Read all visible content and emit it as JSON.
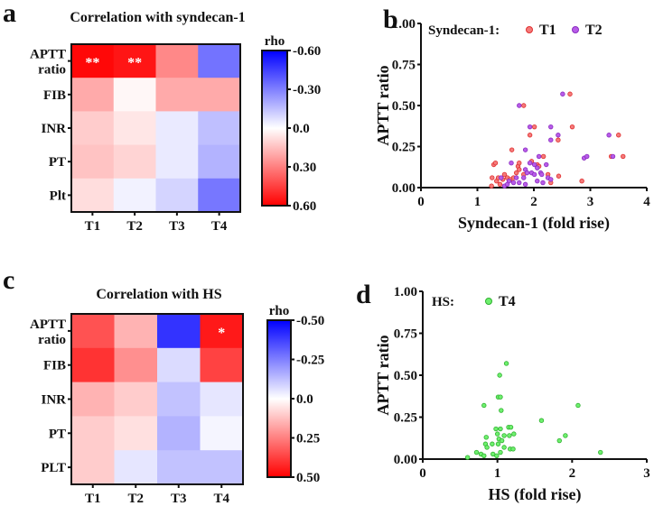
{
  "panels": {
    "a": "a",
    "b": "b",
    "c": "c",
    "d": "d"
  },
  "chart_data": [
    {
      "type": "heatmap",
      "panel": "a",
      "title": "Correlation with syndecan-1",
      "rows": [
        "APTT ratio",
        "FIB",
        "INR",
        "PT",
        "Plt"
      ],
      "columns": [
        "T1",
        "T2",
        "T3",
        "T4"
      ],
      "values": [
        [
          0.58,
          0.55,
          0.28,
          -0.33
        ],
        [
          0.2,
          0.02,
          0.2,
          0.2
        ],
        [
          0.12,
          0.06,
          -0.05,
          -0.15
        ],
        [
          0.14,
          0.1,
          -0.05,
          -0.18
        ],
        [
          0.08,
          -0.03,
          -0.1,
          -0.32
        ]
      ],
      "annotations": [
        [
          "**",
          "**",
          "",
          ""
        ],
        [
          "",
          "",
          "",
          ""
        ],
        [
          "",
          "",
          "",
          ""
        ],
        [
          "",
          "",
          "",
          ""
        ],
        [
          "",
          "",
          "",
          ""
        ]
      ],
      "colorbar": {
        "label": "rho",
        "ticks": [
          "-0.60",
          "-0.30",
          "0.0",
          "0.30",
          "0.60"
        ],
        "range": [
          -0.6,
          0.6
        ],
        "negative_color": "#0000ff",
        "positive_color": "#ff0000"
      }
    },
    {
      "type": "scatter",
      "panel": "b",
      "xlabel": "Syndecan-1 (fold rise)",
      "ylabel": "APTT ratio",
      "xlim": [
        0,
        4
      ],
      "ylim": [
        0,
        1
      ],
      "xticks": [
        "0",
        "1",
        "2",
        "3",
        "4"
      ],
      "yticks": [
        "0.00",
        "0.25",
        "0.50",
        "0.75",
        "1.00"
      ],
      "legend_title": "Syndecan-1:",
      "series": [
        {
          "name": "T1",
          "fill": "#f47a7a",
          "stroke": "#e03030",
          "points": [
            [
              1.26,
              0.06
            ],
            [
              1.25,
              0.01
            ],
            [
              1.34,
              0.04
            ],
            [
              1.37,
              0.06
            ],
            [
              1.45,
              0.05
            ],
            [
              1.4,
              0.02
            ],
            [
              1.48,
              0.08
            ],
            [
              1.53,
              0.06
            ],
            [
              1.58,
              0.05
            ],
            [
              1.64,
              0.06
            ],
            [
              1.29,
              0.14
            ],
            [
              1.32,
              0.15
            ],
            [
              1.61,
              0.23
            ],
            [
              1.69,
              0.09
            ],
            [
              1.72,
              0.13
            ],
            [
              1.74,
              0.15
            ],
            [
              1.82,
              0.5
            ],
            [
              1.93,
              0.32
            ],
            [
              2.01,
              0.37
            ],
            [
              1.74,
              0.11
            ],
            [
              1.82,
              0.08
            ],
            [
              1.96,
              0.16
            ],
            [
              2.06,
              0.14
            ],
            [
              2.09,
              0.13
            ],
            [
              2.17,
              0.19
            ],
            [
              2.25,
              0.08
            ],
            [
              2.3,
              0.03
            ],
            [
              2.44,
              0.07
            ],
            [
              2.43,
              0.29
            ],
            [
              2.64,
              0.57
            ],
            [
              2.68,
              0.37
            ],
            [
              2.85,
              0.04
            ],
            [
              3.5,
              0.32
            ],
            [
              3.37,
              0.19
            ],
            [
              3.58,
              0.19
            ]
          ]
        },
        {
          "name": "T2",
          "fill": "#b85ce8",
          "stroke": "#8a2cc0",
          "points": [
            [
              1.74,
              0.5
            ],
            [
              2.51,
              0.57
            ],
            [
              1.93,
              0.37
            ],
            [
              2.3,
              0.37
            ],
            [
              2.43,
              0.32
            ],
            [
              2.3,
              0.29
            ],
            [
              1.85,
              0.23
            ],
            [
              3.33,
              0.32
            ],
            [
              2.89,
              0.18
            ],
            [
              2.94,
              0.19
            ],
            [
              3.4,
              0.19
            ],
            [
              1.6,
              0.15
            ],
            [
              2.09,
              0.19
            ],
            [
              2.22,
              0.14
            ],
            [
              1.85,
              0.11
            ],
            [
              1.93,
              0.15
            ],
            [
              2.01,
              0.14
            ],
            [
              1.88,
              0.09
            ],
            [
              1.96,
              0.09
            ],
            [
              2.01,
              0.08
            ],
            [
              2.06,
              0.12
            ],
            [
              2.12,
              0.09
            ],
            [
              2.14,
              0.08
            ],
            [
              2.25,
              0.06
            ],
            [
              2.3,
              0.05
            ],
            [
              2.06,
              0.04
            ],
            [
              2.16,
              0.03
            ],
            [
              1.69,
              0.06
            ],
            [
              1.82,
              0.06
            ],
            [
              1.74,
              0.03
            ],
            [
              1.85,
              0.02
            ],
            [
              1.64,
              0.03
            ],
            [
              1.56,
              0.04
            ],
            [
              1.42,
              0.06
            ],
            [
              1.48,
              0.01
            ],
            [
              1.53,
              0.02
            ]
          ]
        }
      ]
    },
    {
      "type": "heatmap",
      "panel": "c",
      "title": "Correlation with HS",
      "rows": [
        "APTT ratio",
        "FIB",
        "INR",
        "PT",
        "PLT"
      ],
      "columns": [
        "T1",
        "T2",
        "T3",
        "T4"
      ],
      "values": [
        [
          0.34,
          0.15,
          -0.4,
          0.45
        ],
        [
          0.4,
          0.22,
          -0.07,
          0.37
        ],
        [
          0.15,
          0.1,
          -0.12,
          -0.05
        ],
        [
          0.1,
          0.06,
          -0.15,
          -0.02
        ],
        [
          0.1,
          -0.05,
          -0.12,
          -0.12
        ]
      ],
      "annotations": [
        [
          "",
          "",
          "",
          "*"
        ],
        [
          "",
          "",
          "",
          ""
        ],
        [
          "",
          "",
          "",
          ""
        ],
        [
          "",
          "",
          "",
          ""
        ],
        [
          "",
          "",
          "",
          ""
        ]
      ],
      "colorbar": {
        "label": "rho",
        "ticks": [
          "-0.50",
          "-0.25",
          "0.0",
          "0.25",
          "0.50"
        ],
        "range": [
          -0.5,
          0.5
        ],
        "negative_color": "#0000ff",
        "positive_color": "#ff0000"
      }
    },
    {
      "type": "scatter",
      "panel": "d",
      "xlabel": "HS (fold rise)",
      "ylabel": "APTT ratio",
      "xlim": [
        0,
        3
      ],
      "ylim": [
        0,
        1
      ],
      "xticks": [
        "0",
        "1",
        "2",
        "3"
      ],
      "yticks": [
        "0.00",
        "0.25",
        "0.50",
        "0.75",
        "1.00"
      ],
      "legend_title": "HS:",
      "series": [
        {
          "name": "T4",
          "fill": "#6ef06e",
          "stroke": "#30b030",
          "points": [
            [
              0.6,
              0.01
            ],
            [
              0.72,
              0.04
            ],
            [
              0.78,
              0.03
            ],
            [
              0.82,
              0.02
            ],
            [
              0.84,
              0.09
            ],
            [
              0.85,
              0.13
            ],
            [
              0.86,
              0.07
            ],
            [
              0.82,
              0.32
            ],
            [
              0.93,
              0.09
            ],
            [
              0.94,
              0.03
            ],
            [
              0.99,
              0.02
            ],
            [
              0.98,
              0.18
            ],
            [
              1.0,
              0.15
            ],
            [
              1.01,
              0.09
            ],
            [
              1.02,
              0.12
            ],
            [
              1.04,
              0.18
            ],
            [
              1.03,
              0.5
            ],
            [
              1.01,
              0.37
            ],
            [
              1.04,
              0.37
            ],
            [
              1.05,
              0.29
            ],
            [
              1.04,
              0.04
            ],
            [
              1.06,
              0.11
            ],
            [
              1.09,
              0.14
            ],
            [
              1.09,
              0.07
            ],
            [
              1.12,
              0.57
            ],
            [
              1.15,
              0.19
            ],
            [
              1.18,
              0.19
            ],
            [
              1.16,
              0.14
            ],
            [
              1.17,
              0.06
            ],
            [
              1.21,
              0.06
            ],
            [
              1.22,
              0.15
            ],
            [
              1.59,
              0.23
            ],
            [
              1.83,
              0.11
            ],
            [
              1.91,
              0.14
            ],
            [
              2.08,
              0.32
            ],
            [
              2.38,
              0.04
            ]
          ]
        }
      ]
    }
  ]
}
